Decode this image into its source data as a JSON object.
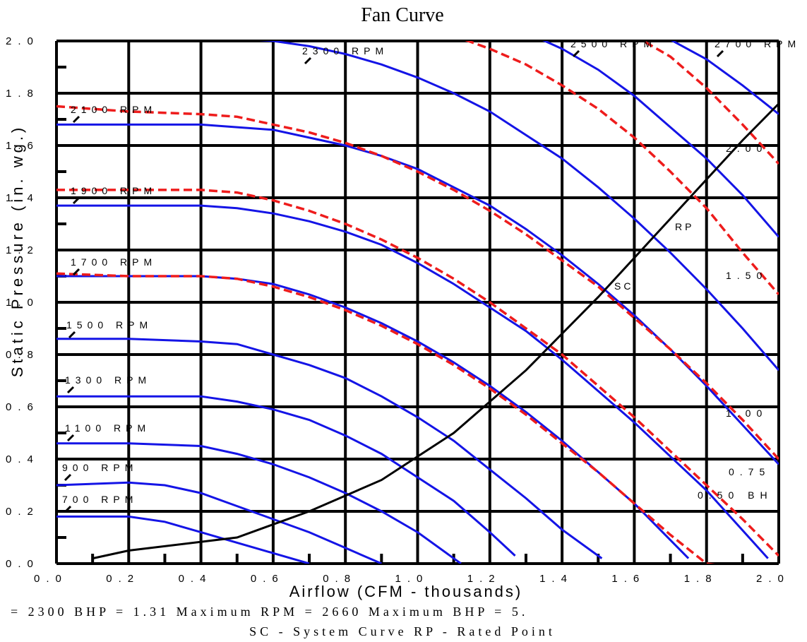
{
  "chart_data": {
    "type": "line",
    "title": "Fan Curve",
    "xlabel": "Airflow (CFM - thousands)",
    "ylabel": "Static Pressure (in. wg.)",
    "xlim": [
      0,
      2.0
    ],
    "ylim": [
      0,
      2.0
    ],
    "x_ticks": [
      "0.0",
      "0.2",
      "0.4",
      "0.6",
      "0.8",
      "1.0",
      "1.2",
      "1.4",
      "1.6",
      "1.8",
      "2.0"
    ],
    "y_ticks": [
      "0.0",
      "0.2",
      "0.4",
      "0.6",
      "0.8",
      "1.0",
      "1.2",
      "1.4",
      "1.6",
      "1.8",
      "2.0"
    ],
    "grid": true,
    "footer_lines": [
      "= 2300  BHP = 1.31  Maximum RPM = 2660  Maximum BHP = 5.",
      "SC - System Curve   RP - Rated Point"
    ],
    "series": [
      {
        "name": "700 RPM",
        "label": "700 RPM",
        "style": "blue",
        "x": [
          0.0,
          0.1,
          0.2,
          0.3,
          0.4,
          0.5,
          0.6,
          0.7
        ],
        "y": [
          0.18,
          0.18,
          0.18,
          0.16,
          0.12,
          0.08,
          0.04,
          0.0
        ]
      },
      {
        "name": "900 RPM",
        "label": "900 RPM",
        "style": "blue",
        "x": [
          0.0,
          0.2,
          0.3,
          0.4,
          0.5,
          0.6,
          0.7,
          0.8,
          0.9
        ],
        "y": [
          0.3,
          0.31,
          0.3,
          0.27,
          0.22,
          0.17,
          0.12,
          0.06,
          0.0
        ]
      },
      {
        "name": "1100 RPM",
        "label": "1100 RPM",
        "style": "blue",
        "x": [
          0.0,
          0.2,
          0.4,
          0.5,
          0.6,
          0.7,
          0.8,
          0.9,
          1.0,
          1.12
        ],
        "y": [
          0.46,
          0.46,
          0.45,
          0.42,
          0.38,
          0.33,
          0.27,
          0.2,
          0.12,
          0.0
        ]
      },
      {
        "name": "1300 RPM",
        "label": "1300 RPM",
        "style": "blue",
        "x": [
          0.0,
          0.2,
          0.4,
          0.5,
          0.6,
          0.7,
          0.8,
          0.9,
          1.0,
          1.1,
          1.2,
          1.27
        ],
        "y": [
          0.64,
          0.64,
          0.64,
          0.62,
          0.59,
          0.55,
          0.49,
          0.42,
          0.33,
          0.24,
          0.12,
          0.03
        ]
      },
      {
        "name": "1500 RPM",
        "label": "1500 RPM",
        "style": "blue",
        "x": [
          0.0,
          0.2,
          0.4,
          0.5,
          0.6,
          0.7,
          0.8,
          0.9,
          1.0,
          1.1,
          1.2,
          1.3,
          1.4,
          1.51
        ],
        "y": [
          0.86,
          0.86,
          0.85,
          0.84,
          0.8,
          0.76,
          0.71,
          0.64,
          0.56,
          0.47,
          0.36,
          0.25,
          0.13,
          0.02
        ]
      },
      {
        "name": "1700 RPM",
        "label": "1700 RPM",
        "style": "blue",
        "x": [
          0.0,
          0.2,
          0.4,
          0.5,
          0.6,
          0.7,
          0.8,
          0.9,
          1.0,
          1.1,
          1.2,
          1.3,
          1.4,
          1.5,
          1.6,
          1.75
        ],
        "y": [
          1.1,
          1.1,
          1.1,
          1.09,
          1.07,
          1.03,
          0.98,
          0.92,
          0.85,
          0.77,
          0.68,
          0.58,
          0.47,
          0.35,
          0.23,
          0.02
        ]
      },
      {
        "name": "1900 RPM",
        "label": "1900 RPM",
        "style": "blue",
        "x": [
          0.0,
          0.2,
          0.4,
          0.5,
          0.6,
          0.7,
          0.8,
          0.9,
          1.0,
          1.1,
          1.2,
          1.3,
          1.4,
          1.5,
          1.6,
          1.7,
          1.8,
          1.97
        ],
        "y": [
          1.37,
          1.37,
          1.37,
          1.36,
          1.34,
          1.31,
          1.27,
          1.22,
          1.15,
          1.07,
          0.98,
          0.89,
          0.78,
          0.66,
          0.54,
          0.41,
          0.28,
          0.02
        ]
      },
      {
        "name": "2100 RPM",
        "label": "2100 RPM",
        "style": "blue",
        "x": [
          0.0,
          0.2,
          0.4,
          0.5,
          0.6,
          0.7,
          0.8,
          0.9,
          1.0,
          1.1,
          1.2,
          1.3,
          1.4,
          1.5,
          1.6,
          1.7,
          1.8,
          1.9,
          2.0
        ],
        "y": [
          1.68,
          1.68,
          1.68,
          1.67,
          1.66,
          1.63,
          1.6,
          1.56,
          1.51,
          1.44,
          1.37,
          1.28,
          1.18,
          1.07,
          0.95,
          0.82,
          0.68,
          0.53,
          0.38
        ]
      },
      {
        "name": "2300 RPM",
        "label": "2300 RPM",
        "style": "blue",
        "x": [
          0.0,
          0.2,
          0.4,
          0.6,
          0.7,
          0.8,
          0.9,
          1.0,
          1.1,
          1.2,
          1.3,
          1.4,
          1.5,
          1.6,
          1.7,
          1.8,
          1.9,
          2.0
        ],
        "y": [
          2.01,
          2.01,
          2.02,
          2.0,
          1.98,
          1.95,
          1.91,
          1.86,
          1.8,
          1.73,
          1.64,
          1.55,
          1.44,
          1.32,
          1.19,
          1.05,
          0.9,
          0.74
        ]
      },
      {
        "name": "2500 RPM",
        "label": "2500 RPM",
        "style": "blue",
        "x": [
          1.32,
          1.4,
          1.5,
          1.6,
          1.7,
          1.8,
          1.9,
          2.0
        ],
        "y": [
          2.02,
          1.97,
          1.89,
          1.79,
          1.67,
          1.55,
          1.41,
          1.25
        ]
      },
      {
        "name": "2700 RPM",
        "label": "2700 RPM",
        "style": "blue",
        "x": [
          1.68,
          1.8,
          1.9,
          2.0
        ],
        "y": [
          2.02,
          1.93,
          1.83,
          1.72
        ]
      },
      {
        "name": "2.00 BHP",
        "label": "2.00",
        "style": "red-dash",
        "x": [
          1.6,
          1.7,
          1.8,
          1.9,
          2.0
        ],
        "y": [
          2.02,
          1.94,
          1.82,
          1.68,
          1.53
        ]
      },
      {
        "name": "1.50 BHP",
        "label": "1.50",
        "style": "red-dash",
        "x": [
          1.1,
          1.2,
          1.3,
          1.4,
          1.5,
          1.6,
          1.7,
          1.8,
          1.9,
          2.0
        ],
        "y": [
          2.02,
          1.97,
          1.91,
          1.83,
          1.74,
          1.63,
          1.5,
          1.36,
          1.19,
          1.03
        ]
      },
      {
        "name": "1.00 BHP",
        "label": "1.00",
        "style": "red-dash",
        "x": [
          0.0,
          0.2,
          0.4,
          0.5,
          0.6,
          0.7,
          0.8,
          0.9,
          1.0,
          1.1,
          1.2,
          1.3,
          1.4,
          1.5,
          1.6,
          1.7,
          1.8,
          1.9,
          2.0
        ],
        "y": [
          1.75,
          1.73,
          1.72,
          1.71,
          1.68,
          1.65,
          1.61,
          1.56,
          1.5,
          1.43,
          1.35,
          1.26,
          1.16,
          1.06,
          0.94,
          0.82,
          0.69,
          0.55,
          0.4
        ]
      },
      {
        "name": "0.75 BHP",
        "label": "0.75",
        "style": "red-dash",
        "x": [
          0.0,
          0.2,
          0.4,
          0.5,
          0.6,
          0.7,
          0.8,
          0.9,
          1.0,
          1.1,
          1.2,
          1.3,
          1.4,
          1.5,
          1.6,
          1.7,
          1.8,
          1.9,
          2.0
        ],
        "y": [
          1.43,
          1.43,
          1.43,
          1.42,
          1.39,
          1.35,
          1.3,
          1.24,
          1.17,
          1.09,
          1.0,
          0.9,
          0.8,
          0.68,
          0.56,
          0.43,
          0.3,
          0.17,
          0.03
        ]
      },
      {
        "name": "0.50 BHP",
        "label": "0.50 BH",
        "style": "red-dash",
        "x": [
          0.0,
          0.2,
          0.4,
          0.5,
          0.6,
          0.7,
          0.8,
          0.9,
          1.0,
          1.1,
          1.2,
          1.3,
          1.4,
          1.5,
          1.6,
          1.7,
          1.8,
          1.9,
          1.97
        ],
        "y": [
          1.11,
          1.1,
          1.1,
          1.09,
          1.06,
          1.02,
          0.97,
          0.91,
          0.84,
          0.76,
          0.67,
          0.57,
          0.46,
          0.35,
          0.23,
          0.11,
          0.0,
          -0.02,
          -0.03
        ]
      },
      {
        "name": "SC",
        "label": "SC",
        "style": "black",
        "x": [
          0.1,
          0.2,
          0.5,
          0.7,
          0.9,
          1.1,
          1.3,
          1.5,
          1.7,
          1.9,
          2.0
        ],
        "y": [
          0.02,
          0.05,
          0.1,
          0.2,
          0.32,
          0.5,
          0.74,
          1.02,
          1.32,
          1.62,
          1.76
        ]
      }
    ],
    "annotations": [
      "SC",
      "RP"
    ]
  }
}
